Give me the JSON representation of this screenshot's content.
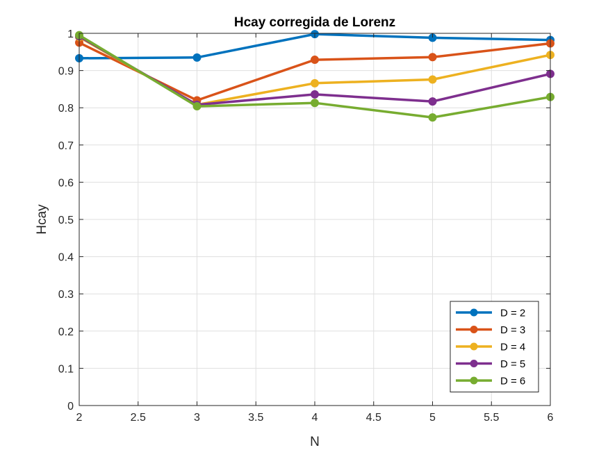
{
  "chart_data": {
    "type": "line",
    "title": "Hcay corregida de Lorenz",
    "xlabel": "N",
    "ylabel": "Hcay",
    "xlim": [
      2,
      6
    ],
    "ylim": [
      0,
      1
    ],
    "xticks": [
      2,
      2.5,
      3,
      3.5,
      4,
      4.5,
      5,
      5.5,
      6
    ],
    "xtick_labels": [
      "2",
      "2.5",
      "3",
      "3.5",
      "4",
      "4.5",
      "5",
      "5.5",
      "6"
    ],
    "yticks": [
      0,
      0.1,
      0.2,
      0.3,
      0.4,
      0.5,
      0.6,
      0.7,
      0.8,
      0.9,
      1
    ],
    "ytick_labels": [
      "0",
      "0.1",
      "0.2",
      "0.3",
      "0.4",
      "0.5",
      "0.6",
      "0.7",
      "0.8",
      "0.9",
      "1"
    ],
    "grid": true,
    "legend_position": "bottom-right",
    "x": [
      2,
      3,
      4,
      5,
      6
    ],
    "series": [
      {
        "name": "D = 2",
        "color": "#0072BD",
        "values": [
          0.933,
          0.935,
          0.998,
          0.988,
          0.982
        ]
      },
      {
        "name": "D = 3",
        "color": "#D95319",
        "values": [
          0.975,
          0.82,
          0.929,
          0.936,
          0.973
        ]
      },
      {
        "name": "D = 4",
        "color": "#EDB120",
        "values": [
          0.99,
          0.808,
          0.866,
          0.876,
          0.942
        ]
      },
      {
        "name": "D = 5",
        "color": "#7E2F8E",
        "values": [
          0.992,
          0.808,
          0.836,
          0.817,
          0.891
        ]
      },
      {
        "name": "D = 6",
        "color": "#77AC30",
        "values": [
          0.995,
          0.804,
          0.813,
          0.774,
          0.829
        ]
      }
    ]
  }
}
